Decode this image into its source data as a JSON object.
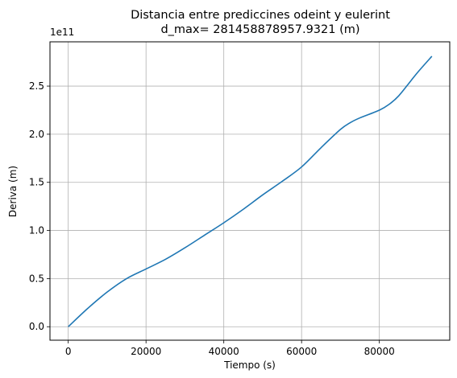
{
  "chart_data": {
    "type": "line",
    "title": "Distancia entre prediccines odeint y eulerint",
    "subtitle": "d_max= 281458878957.9321 (m)",
    "xlabel": "Tiempo (s)",
    "ylabel": "Deriva (m)",
    "y_offset_label": "1e11",
    "xlim": [
      -4700,
      98100
    ],
    "ylim": [
      -0.14,
      2.96
    ],
    "y_scale_factor": 100000000000,
    "x_ticks": [
      0,
      20000,
      40000,
      60000,
      80000
    ],
    "x_tick_labels": [
      "0",
      "20000",
      "40000",
      "60000",
      "80000"
    ],
    "y_ticks": [
      0.0,
      0.5,
      1.0,
      1.5,
      2.0,
      2.5
    ],
    "y_tick_labels": [
      "0.0",
      "0.5",
      "1.0",
      "1.5",
      "2.0",
      "2.5"
    ],
    "grid": true,
    "line_color": "#1f77b4",
    "series": [
      {
        "x": [
          0,
          5000,
          10000,
          15000,
          20000,
          25000,
          30000,
          35000,
          40000,
          45000,
          50000,
          55000,
          60000,
          65000,
          70000,
          72500,
          75000,
          80000,
          82500,
          85000,
          88000,
          90000,
          93500
        ],
        "y": [
          0.0,
          0.19,
          0.36,
          0.5,
          0.6,
          0.7,
          0.82,
          0.95,
          1.08,
          1.22,
          1.37,
          1.51,
          1.66,
          1.86,
          2.05,
          2.12,
          2.17,
          2.25,
          2.31,
          2.4,
          2.55,
          2.65,
          2.81
        ]
      }
    ]
  }
}
